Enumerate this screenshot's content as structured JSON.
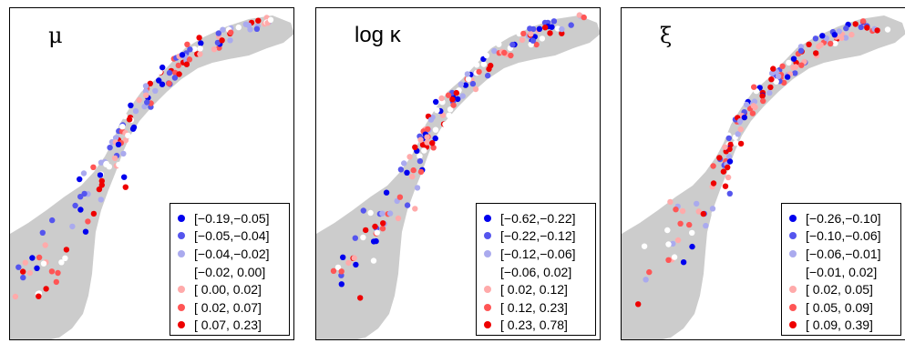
{
  "colors": [
    "#0000ee",
    "#5555ee",
    "#aaaaee",
    "#ffffff",
    "#ffaaaa",
    "#ff5555",
    "#ee0000"
  ],
  "land_color": "#cccccc",
  "panels": [
    {
      "title": "μ",
      "legend": [
        "[−0.19,−0.05]",
        "[−0.05,−0.04]",
        "[−0.04,−0.02]",
        "[−0.02, 0.00]",
        "[ 0.00, 0.02]",
        "[ 0.02, 0.07]",
        "[ 0.07, 0.23]"
      ]
    },
    {
      "title": "log κ",
      "legend": [
        "[−0.62,−0.22]",
        "[−0.22,−0.12]",
        "[−0.12,−0.06]",
        "[−0.06, 0.02]",
        "[ 0.02, 0.12]",
        "[ 0.12, 0.23]",
        "[ 0.23, 0.78]"
      ]
    },
    {
      "title": "ξ",
      "legend": [
        "[−0.26,−0.10]",
        "[−0.10,−0.06]",
        "[−0.06,−0.01]",
        "[−0.01, 0.02]",
        "[ 0.02, 0.05]",
        "[ 0.05, 0.09]",
        "[ 0.09, 0.39]"
      ]
    }
  ]
}
